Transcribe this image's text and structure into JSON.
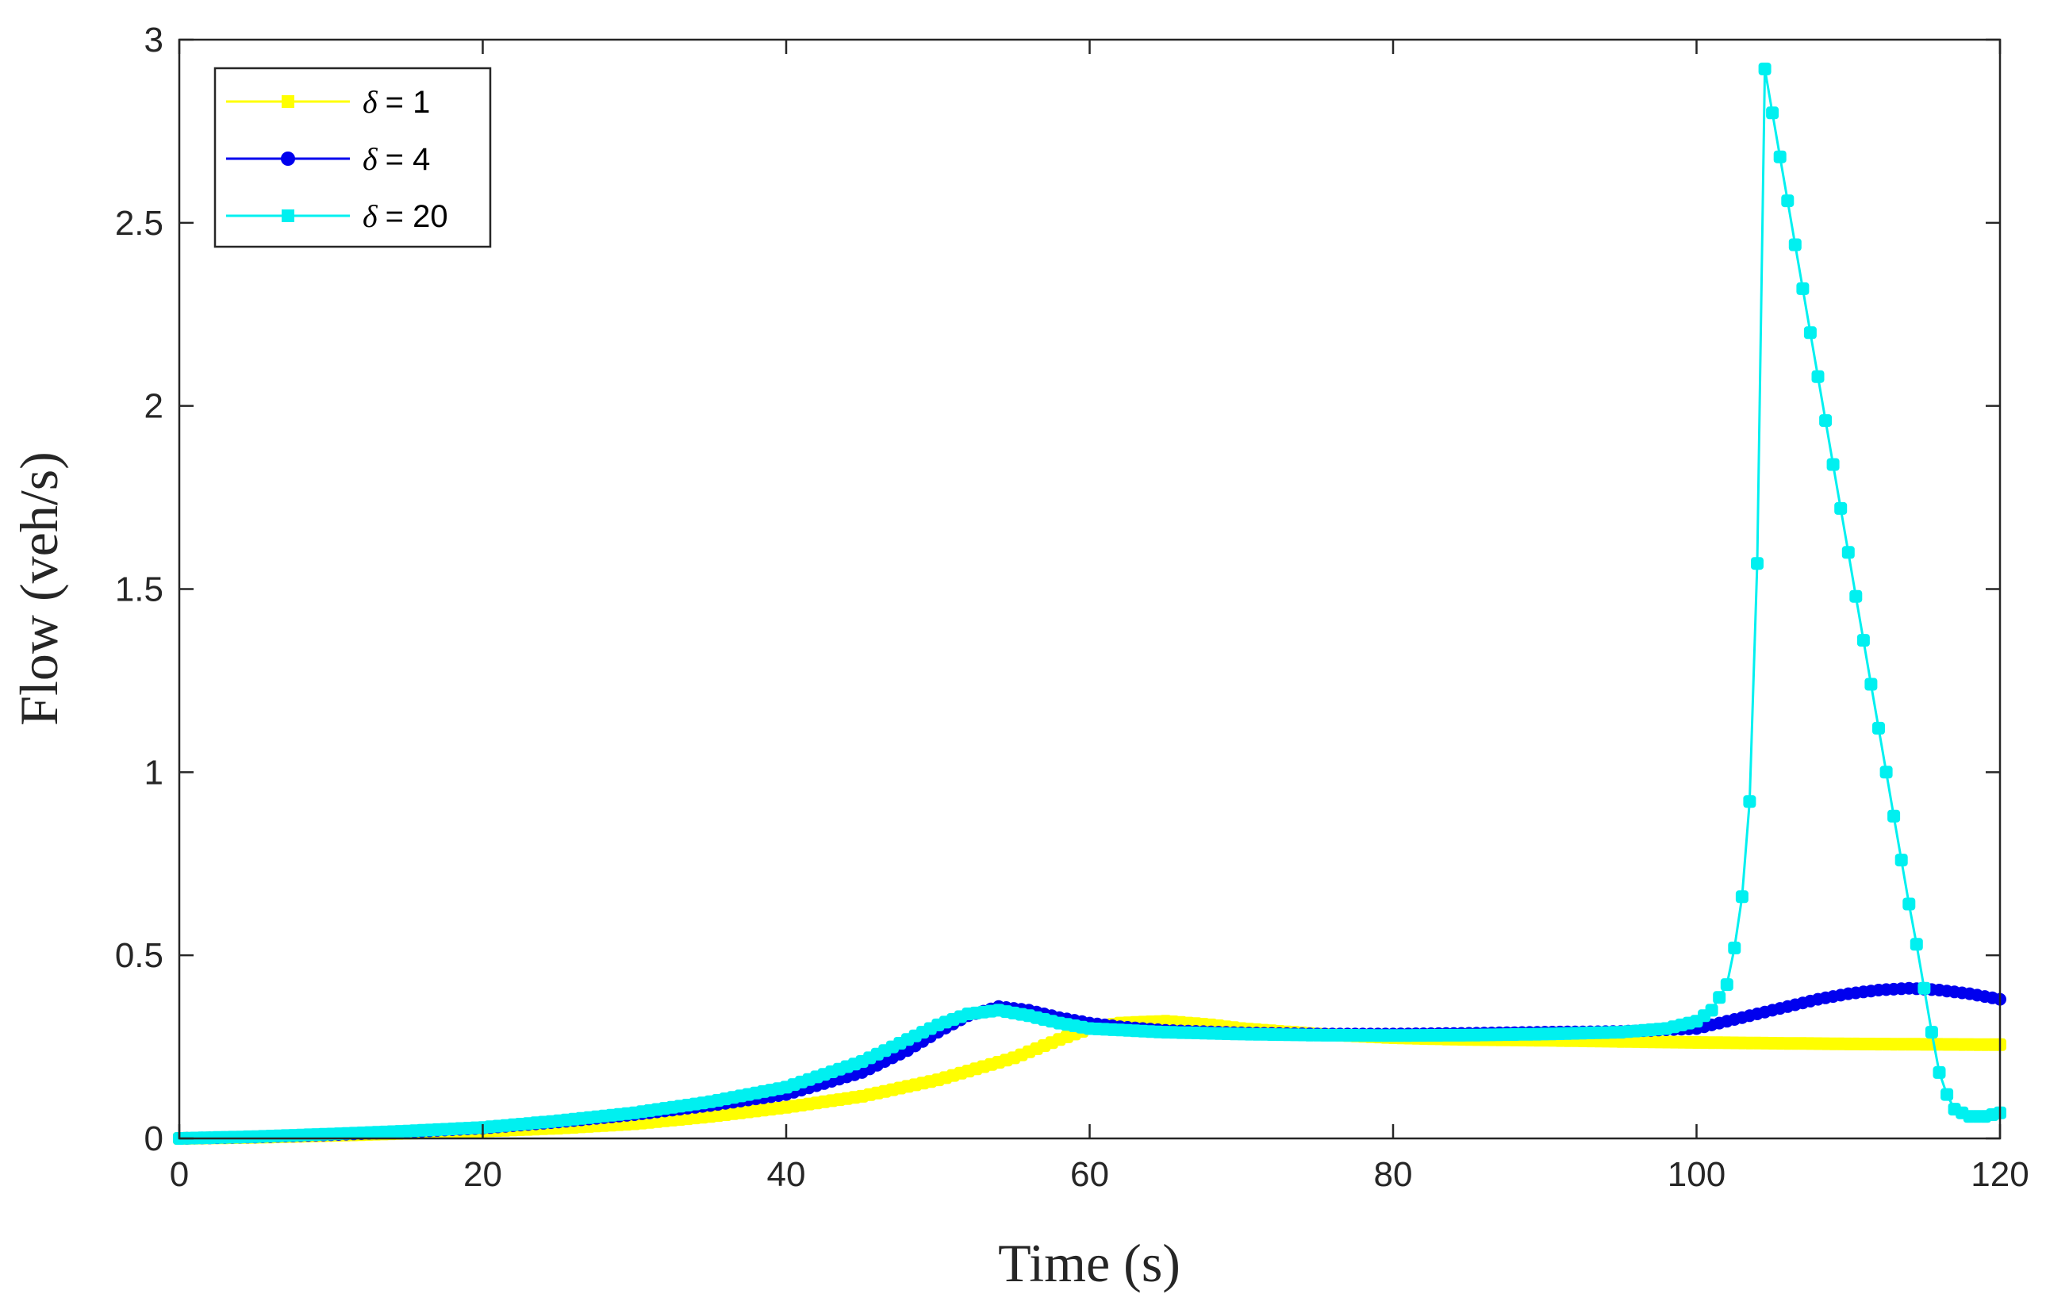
{
  "chart_data": {
    "type": "line",
    "title": "",
    "xlabel": "Time (s)",
    "ylabel": "Flow (veh/s)",
    "xlim": [
      0,
      120
    ],
    "ylim": [
      0,
      3
    ],
    "xticks": [
      0,
      20,
      40,
      60,
      80,
      100,
      120
    ],
    "yticks": [
      0,
      0.5,
      1,
      1.5,
      2,
      2.5,
      3
    ],
    "xtick_labels": [
      "0",
      "20",
      "40",
      "60",
      "80",
      "100",
      "120"
    ],
    "ytick_labels": [
      "0",
      "0.5",
      "1",
      "1.5",
      "2",
      "2.5",
      "3"
    ],
    "grid": false,
    "legend_position": "top-left",
    "series": [
      {
        "name": "δ = 1",
        "legend_symbol": "δ",
        "legend_value": "= 1",
        "color": "#ffff00",
        "marker": "square",
        "x": [
          0,
          5,
          10,
          15,
          20,
          25,
          30,
          35,
          40,
          45,
          50,
          55,
          58,
          60,
          62,
          65,
          68,
          70,
          75,
          80,
          85,
          90,
          95,
          100,
          105,
          110,
          115,
          120
        ],
        "y": [
          0,
          0.003,
          0.008,
          0.014,
          0.02,
          0.028,
          0.04,
          0.06,
          0.085,
          0.115,
          0.16,
          0.22,
          0.27,
          0.3,
          0.315,
          0.32,
          0.31,
          0.3,
          0.285,
          0.275,
          0.27,
          0.268,
          0.265,
          0.262,
          0.26,
          0.258,
          0.257,
          0.256
        ]
      },
      {
        "name": "δ = 4",
        "legend_symbol": "δ",
        "legend_value": "= 4",
        "color": "#0000ee",
        "marker": "circle",
        "x": [
          0,
          5,
          10,
          15,
          20,
          25,
          30,
          35,
          40,
          45,
          48,
          50,
          52,
          54,
          56,
          58,
          60,
          62,
          65,
          70,
          75,
          80,
          85,
          90,
          95,
          100,
          103,
          105,
          108,
          110,
          112,
          114,
          116,
          118,
          120
        ],
        "y": [
          0,
          0.004,
          0.01,
          0.018,
          0.028,
          0.045,
          0.065,
          0.09,
          0.12,
          0.18,
          0.24,
          0.29,
          0.335,
          0.36,
          0.35,
          0.33,
          0.315,
          0.305,
          0.295,
          0.288,
          0.285,
          0.285,
          0.287,
          0.29,
          0.292,
          0.3,
          0.33,
          0.35,
          0.38,
          0.395,
          0.405,
          0.41,
          0.405,
          0.395,
          0.38
        ]
      },
      {
        "name": "δ = 20",
        "legend_symbol": "δ",
        "legend_value": "= 20",
        "color": "#00f0f0",
        "marker": "square",
        "x": [
          0,
          5,
          10,
          15,
          20,
          25,
          30,
          35,
          40,
          45,
          48,
          50,
          52,
          54,
          56,
          58,
          60,
          65,
          70,
          75,
          80,
          85,
          90,
          95,
          98,
          100,
          101,
          102,
          102.5,
          103,
          103.5,
          104,
          104.5,
          105,
          105.5,
          106,
          106.5,
          107,
          107.5,
          108,
          108.5,
          109,
          109.5,
          110,
          110.5,
          111,
          111.5,
          112,
          112.5,
          113,
          113.5,
          114,
          114.5,
          115,
          115.5,
          116,
          116.5,
          117,
          118,
          119,
          120
        ],
        "y": [
          0,
          0.005,
          0.012,
          0.02,
          0.03,
          0.048,
          0.07,
          0.1,
          0.14,
          0.21,
          0.27,
          0.31,
          0.34,
          0.35,
          0.335,
          0.315,
          0.3,
          0.29,
          0.285,
          0.282,
          0.281,
          0.282,
          0.285,
          0.29,
          0.3,
          0.32,
          0.35,
          0.42,
          0.52,
          0.66,
          0.92,
          1.57,
          2.92,
          2.8,
          2.68,
          2.56,
          2.44,
          2.32,
          2.2,
          2.08,
          1.96,
          1.84,
          1.72,
          1.6,
          1.48,
          1.36,
          1.24,
          1.12,
          1.0,
          0.88,
          0.76,
          0.64,
          0.53,
          0.41,
          0.29,
          0.18,
          0.12,
          0.08,
          0.06,
          0.06,
          0.07
        ]
      }
    ]
  }
}
